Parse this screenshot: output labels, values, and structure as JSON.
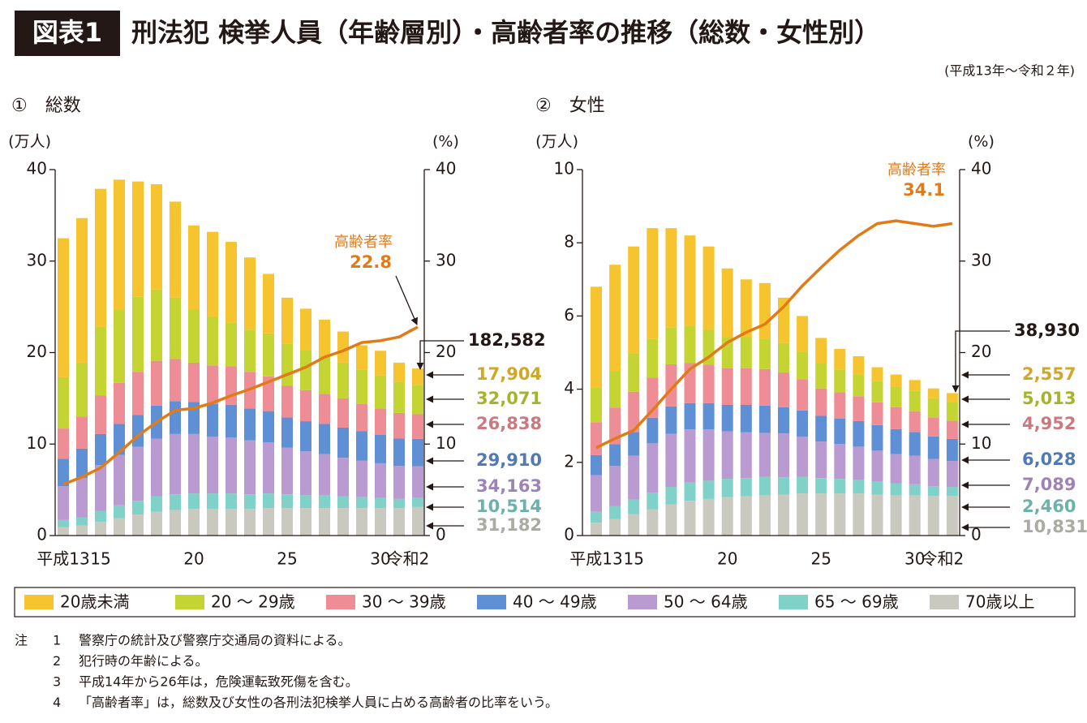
{
  "header": {
    "badge": "図表1",
    "title": "刑法犯 検挙人員（年齢層別）・高齢者率の推移（総数・女性別）",
    "period": "(平成13年～令和２年)"
  },
  "chart_data": [
    {
      "type": "bar",
      "stacked": true,
      "title": "①　総数",
      "ylabel": "(万人)",
      "y2label": "(%)",
      "categories": [
        "平成13",
        null,
        "15",
        null,
        null,
        null,
        null,
        "20",
        null,
        null,
        null,
        null,
        "25",
        null,
        null,
        null,
        null,
        "30",
        null,
        "令和2"
      ],
      "ylim": [
        0,
        40
      ],
      "yticks": [
        0,
        10,
        20,
        30,
        40
      ],
      "y2lim": [
        0,
        40
      ],
      "y2ticks": [
        0,
        10,
        20,
        30,
        40
      ],
      "total": {
        "value": 18.2582,
        "label": "182,582"
      },
      "series": [
        {
          "name": "20歳未満",
          "color": "#f6c42e",
          "values": [
            15.2,
            15.8,
            15.1,
            14.2,
            12.6,
            11.5,
            10.5,
            9.2,
            9.3,
            8.8,
            7.9,
            6.5,
            5.0,
            4.5,
            4.0,
            3.4,
            2.7,
            2.7,
            2.1,
            1.7904
          ],
          "value_labels": [
            null,
            null,
            null,
            null,
            null,
            null,
            null,
            null,
            null,
            null,
            null,
            null,
            null,
            null,
            null,
            null,
            null,
            null,
            null,
            "17,904"
          ]
        },
        {
          "name": "20 ～ 29歳",
          "color": "#c3d433",
          "values": [
            5.6,
            5.9,
            7.5,
            8.0,
            8.2,
            7.8,
            6.7,
            5.8,
            5.3,
            4.8,
            4.6,
            4.7,
            4.6,
            4.4,
            4.1,
            3.9,
            3.7,
            3.6,
            3.4,
            3.2071
          ],
          "value_labels": [
            null,
            null,
            null,
            null,
            null,
            null,
            null,
            null,
            null,
            null,
            null,
            null,
            null,
            null,
            null,
            null,
            null,
            null,
            null,
            "32,071"
          ]
        },
        {
          "name": "30 ～ 39歳",
          "color": "#ef8d96",
          "values": [
            3.3,
            3.5,
            4.2,
            4.5,
            4.7,
            4.9,
            4.6,
            4.3,
            4.2,
            4.2,
            4.0,
            3.8,
            3.5,
            3.4,
            3.3,
            3.2,
            3.0,
            2.9,
            2.8,
            2.6838
          ],
          "value_labels": [
            null,
            null,
            null,
            null,
            null,
            null,
            null,
            null,
            null,
            null,
            null,
            null,
            null,
            null,
            null,
            null,
            null,
            null,
            null,
            "26,838"
          ]
        },
        {
          "name": "40 ～ 49歳",
          "color": "#5f90d5",
          "values": [
            3.0,
            3.2,
            3.4,
            3.4,
            3.5,
            3.6,
            3.6,
            3.5,
            3.6,
            3.6,
            3.5,
            3.4,
            3.3,
            3.3,
            3.3,
            3.3,
            3.2,
            3.1,
            3.0,
            2.991
          ],
          "value_labels": [
            null,
            null,
            null,
            null,
            null,
            null,
            null,
            null,
            null,
            null,
            null,
            null,
            null,
            null,
            null,
            null,
            null,
            null,
            null,
            "29,910"
          ]
        },
        {
          "name": "50 ～ 64歳",
          "color": "#b99bd1",
          "values": [
            3.7,
            4.3,
            5.0,
            5.5,
            5.9,
            6.3,
            6.6,
            6.5,
            6.2,
            6.1,
            5.9,
            5.6,
            5.1,
            4.8,
            4.5,
            4.2,
            4.0,
            3.8,
            3.6,
            3.4163
          ],
          "value_labels": [
            null,
            null,
            null,
            null,
            null,
            null,
            null,
            null,
            null,
            null,
            null,
            null,
            null,
            null,
            null,
            null,
            null,
            null,
            null,
            "34,163"
          ]
        },
        {
          "name": "65 ～ 69歳",
          "color": "#80d1c8",
          "values": [
            0.8,
            0.9,
            1.2,
            1.4,
            1.5,
            1.7,
            1.7,
            1.7,
            1.7,
            1.7,
            1.6,
            1.6,
            1.5,
            1.4,
            1.4,
            1.3,
            1.2,
            1.1,
            1.0,
            1.0514
          ],
          "value_labels": [
            null,
            null,
            null,
            null,
            null,
            null,
            null,
            null,
            null,
            null,
            null,
            null,
            null,
            null,
            null,
            null,
            null,
            null,
            null,
            "10,514"
          ]
        },
        {
          "name": "70歳以上",
          "color": "#c9c9c0",
          "values": [
            0.9,
            1.1,
            1.5,
            1.9,
            2.3,
            2.6,
            2.8,
            2.9,
            2.9,
            2.9,
            2.9,
            3.0,
            3.0,
            3.0,
            3.0,
            3.0,
            3.0,
            3.0,
            3.0,
            3.1182
          ],
          "value_labels": [
            null,
            null,
            null,
            null,
            null,
            null,
            null,
            null,
            null,
            null,
            null,
            null,
            null,
            null,
            null,
            null,
            null,
            null,
            null,
            "31,182"
          ]
        },
        {
          "name": "高齢者率",
          "type": "line",
          "axis": "y2",
          "color": "#e07b17",
          "values": [
            5.6,
            6.4,
            7.4,
            9.1,
            10.9,
            12.4,
            13.7,
            13.9,
            14.5,
            15.3,
            16.0,
            16.8,
            17.6,
            18.4,
            19.5,
            20.2,
            21.1,
            21.3,
            21.7,
            22.8
          ]
        }
      ]
    },
    {
      "type": "bar",
      "stacked": true,
      "title": "②　女性",
      "ylabel": "(万人)",
      "y2label": "(%)",
      "categories": [
        "平成13",
        null,
        "15",
        null,
        null,
        null,
        null,
        "20",
        null,
        null,
        null,
        null,
        "25",
        null,
        null,
        null,
        null,
        "30",
        null,
        "令和2"
      ],
      "ylim": [
        0,
        10
      ],
      "yticks": [
        0,
        2,
        4,
        6,
        8,
        10
      ],
      "y2lim": [
        0,
        40
      ],
      "y2ticks": [
        0,
        10,
        20,
        30,
        40
      ],
      "total": {
        "value": 3.893,
        "label": "38,930"
      },
      "series": [
        {
          "name": "20歳未満",
          "color": "#f6c42e",
          "values": [
            2.75,
            2.9,
            2.92,
            3.03,
            2.72,
            2.48,
            2.28,
            1.88,
            1.58,
            1.52,
            1.24,
            0.98,
            0.7,
            0.56,
            0.49,
            0.38,
            0.33,
            0.3,
            0.27,
            0.2557
          ],
          "value_labels": [
            null,
            null,
            null,
            null,
            null,
            null,
            null,
            null,
            null,
            null,
            null,
            null,
            null,
            null,
            null,
            null,
            null,
            null,
            null,
            "2,557"
          ]
        },
        {
          "name": "20 ～ 29歳",
          "color": "#c3d433",
          "values": [
            0.95,
            1.0,
            1.05,
            1.05,
            1.0,
            1.0,
            0.95,
            0.85,
            0.85,
            0.83,
            0.8,
            0.75,
            0.68,
            0.62,
            0.6,
            0.58,
            0.56,
            0.55,
            0.52,
            0.5013
          ],
          "value_labels": [
            null,
            null,
            null,
            null,
            null,
            null,
            null,
            null,
            null,
            null,
            null,
            null,
            null,
            null,
            null,
            null,
            null,
            null,
            null,
            "5,013"
          ]
        },
        {
          "name": "30 ～ 39歳",
          "color": "#ef8d96",
          "values": [
            0.9,
            1.0,
            1.1,
            1.1,
            1.15,
            1.1,
            1.05,
            1.0,
            1.0,
            1.0,
            0.95,
            0.85,
            0.75,
            0.72,
            0.68,
            0.62,
            0.6,
            0.57,
            0.52,
            0.4952
          ],
          "value_labels": [
            null,
            null,
            null,
            null,
            null,
            null,
            null,
            null,
            null,
            null,
            null,
            null,
            null,
            null,
            null,
            null,
            null,
            null,
            null,
            "4,952"
          ]
        },
        {
          "name": "40 ～ 49歳",
          "color": "#5f90d5",
          "values": [
            0.55,
            0.6,
            0.65,
            0.7,
            0.75,
            0.72,
            0.72,
            0.72,
            0.75,
            0.75,
            0.72,
            0.72,
            0.7,
            0.7,
            0.7,
            0.7,
            0.68,
            0.65,
            0.62,
            0.6028
          ],
          "value_labels": [
            null,
            null,
            null,
            null,
            null,
            null,
            null,
            null,
            null,
            null,
            null,
            null,
            null,
            null,
            null,
            null,
            null,
            null,
            null,
            "6,028"
          ]
        },
        {
          "name": "50 ～ 64歳",
          "color": "#b99bd1",
          "values": [
            1.0,
            1.1,
            1.2,
            1.35,
            1.45,
            1.45,
            1.4,
            1.3,
            1.25,
            1.2,
            1.2,
            1.1,
            1.0,
            0.95,
            0.9,
            0.85,
            0.8,
            0.78,
            0.74,
            0.7089
          ],
          "value_labels": [
            null,
            null,
            null,
            null,
            null,
            null,
            null,
            null,
            null,
            null,
            null,
            null,
            null,
            null,
            null,
            null,
            null,
            null,
            null,
            "7,089"
          ]
        },
        {
          "name": "65 ～ 69歳",
          "color": "#80d1c8",
          "values": [
            0.3,
            0.35,
            0.4,
            0.45,
            0.48,
            0.5,
            0.5,
            0.5,
            0.5,
            0.5,
            0.47,
            0.45,
            0.42,
            0.4,
            0.38,
            0.35,
            0.33,
            0.3,
            0.27,
            0.246
          ],
          "value_labels": [
            null,
            null,
            null,
            null,
            null,
            null,
            null,
            null,
            null,
            null,
            null,
            null,
            null,
            null,
            null,
            null,
            null,
            null,
            null,
            "2,460"
          ]
        },
        {
          "name": "70歳以上",
          "color": "#c9c9c0",
          "values": [
            0.35,
            0.45,
            0.58,
            0.72,
            0.85,
            0.95,
            1.0,
            1.05,
            1.07,
            1.1,
            1.12,
            1.15,
            1.15,
            1.15,
            1.15,
            1.12,
            1.1,
            1.1,
            1.08,
            1.0831
          ],
          "value_labels": [
            null,
            null,
            null,
            null,
            null,
            null,
            null,
            null,
            null,
            null,
            null,
            null,
            null,
            null,
            null,
            null,
            null,
            null,
            null,
            "10,831"
          ]
        },
        {
          "name": "高齢者率",
          "type": "line",
          "axis": "y2",
          "color": "#e07b17",
          "values": [
            9.6,
            10.6,
            11.5,
            13.7,
            16.0,
            18.2,
            19.5,
            21.1,
            22.2,
            23.1,
            25.0,
            27.3,
            29.3,
            31.2,
            32.8,
            34.1,
            34.4,
            34.1,
            33.8,
            34.1
          ]
        }
      ]
    }
  ],
  "notes": {
    "label": "注",
    "items": [
      {
        "num": "1",
        "text": "警察庁の統計及び警察庁交通局の資料による。"
      },
      {
        "num": "2",
        "text": "犯行時の年齢による。"
      },
      {
        "num": "3",
        "text": "平成14年から26年は，危険運転致死傷を含む。"
      },
      {
        "num": "4",
        "text": "「高齢者率」は，総数及び女性の各刑法犯検挙人員に占める高齢者の比率をいう。"
      }
    ]
  }
}
